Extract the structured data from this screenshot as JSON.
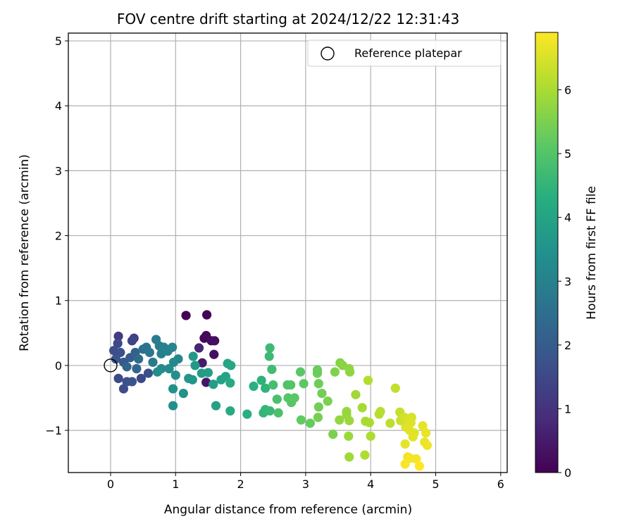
{
  "chart_data": {
    "type": "scatter",
    "title": "FOV centre drift starting at 2024/12/22 12:31:43",
    "xlabel": "Angular distance from reference (arcmin)",
    "ylabel": "Rotation from reference (arcmin)",
    "xlim": [
      -0.65,
      6.1
    ],
    "ylim": [
      -1.65,
      5.12
    ],
    "xticks": [
      "0",
      "1",
      "2",
      "3",
      "4",
      "5",
      "6"
    ],
    "yticks": [
      "−1",
      "0",
      "1",
      "2",
      "3",
      "4",
      "5"
    ],
    "grid": true,
    "legend": {
      "placement": "top-right",
      "entries": [
        "Reference platepar"
      ]
    },
    "reference_point": {
      "x": 0,
      "y": 0,
      "name": "Reference platepar"
    },
    "colorbar": {
      "label": "Hours from first FF file",
      "range": [
        0,
        6.9
      ],
      "ticks": [
        "0",
        "1",
        "2",
        "3",
        "4",
        "5",
        "6"
      ],
      "colormap": "viridis"
    },
    "points": [
      {
        "x": 1.16,
        "y": 0.77,
        "t": 0.0
      },
      {
        "x": 1.48,
        "y": 0.78,
        "t": 0.05
      },
      {
        "x": 1.44,
        "y": 0.42,
        "t": 0.1
      },
      {
        "x": 1.47,
        "y": 0.46,
        "t": 0.15
      },
      {
        "x": 1.55,
        "y": 0.38,
        "t": 0.2
      },
      {
        "x": 1.6,
        "y": 0.38,
        "t": 0.25
      },
      {
        "x": 1.59,
        "y": 0.17,
        "t": 0.3
      },
      {
        "x": 1.47,
        "y": -0.26,
        "t": 0.4
      },
      {
        "x": 1.41,
        "y": 0.04,
        "t": 0.5
      },
      {
        "x": 1.36,
        "y": 0.27,
        "t": 0.7
      },
      {
        "x": 0.12,
        "y": 0.45,
        "t": 1.2
      },
      {
        "x": 0.36,
        "y": 0.42,
        "t": 1.3
      },
      {
        "x": 0.33,
        "y": 0.38,
        "t": 1.4
      },
      {
        "x": 0.11,
        "y": 0.34,
        "t": 1.5
      },
      {
        "x": 0.05,
        "y": 0.23,
        "t": 1.6
      },
      {
        "x": 0.15,
        "y": 0.2,
        "t": 1.7
      },
      {
        "x": 0.08,
        "y": 0.1,
        "t": 1.8
      },
      {
        "x": 0.2,
        "y": 0.05,
        "t": 1.9
      },
      {
        "x": 0.12,
        "y": -0.2,
        "t": 1.55
      },
      {
        "x": 0.2,
        "y": -0.36,
        "t": 1.6
      },
      {
        "x": 0.25,
        "y": -0.25,
        "t": 1.7
      },
      {
        "x": 0.33,
        "y": -0.25,
        "t": 1.8
      },
      {
        "x": 0.47,
        "y": -0.2,
        "t": 1.5
      },
      {
        "x": 0.58,
        "y": -0.12,
        "t": 1.65
      },
      {
        "x": 0.3,
        "y": 0.12,
        "t": 2.0
      },
      {
        "x": 0.38,
        "y": 0.2,
        "t": 2.1
      },
      {
        "x": 0.25,
        "y": -0.02,
        "t": 2.2
      },
      {
        "x": 0.4,
        "y": -0.05,
        "t": 2.3
      },
      {
        "x": 0.43,
        "y": 0.1,
        "t": 2.4
      },
      {
        "x": 0.5,
        "y": 0.25,
        "t": 2.5
      },
      {
        "x": 0.55,
        "y": 0.28,
        "t": 2.6
      },
      {
        "x": 0.6,
        "y": 0.2,
        "t": 2.7
      },
      {
        "x": 0.65,
        "y": 0.05,
        "t": 2.8
      },
      {
        "x": 0.7,
        "y": 0.4,
        "t": 2.85
      },
      {
        "x": 0.75,
        "y": 0.3,
        "t": 2.9
      },
      {
        "x": 0.78,
        "y": 0.18,
        "t": 2.95
      },
      {
        "x": 0.82,
        "y": 0.28,
        "t": 3.0
      },
      {
        "x": 0.88,
        "y": 0.22,
        "t": 3.05
      },
      {
        "x": 0.95,
        "y": 0.28,
        "t": 3.1
      },
      {
        "x": 1.04,
        "y": 0.1,
        "t": 3.15
      },
      {
        "x": 0.97,
        "y": 0.05,
        "t": 3.2
      },
      {
        "x": 0.78,
        "y": -0.05,
        "t": 3.25
      },
      {
        "x": 0.72,
        "y": -0.1,
        "t": 3.3
      },
      {
        "x": 0.9,
        "y": -0.05,
        "t": 3.35
      },
      {
        "x": 1.0,
        "y": -0.15,
        "t": 3.4
      },
      {
        "x": 0.96,
        "y": -0.36,
        "t": 3.45
      },
      {
        "x": 0.96,
        "y": -0.62,
        "t": 3.4
      },
      {
        "x": 1.12,
        "y": -0.43,
        "t": 3.5
      },
      {
        "x": 1.2,
        "y": -0.2,
        "t": 3.55
      },
      {
        "x": 1.26,
        "y": -0.22,
        "t": 3.6
      },
      {
        "x": 1.27,
        "y": 0.14,
        "t": 3.65
      },
      {
        "x": 1.3,
        "y": 0.0,
        "t": 3.7
      },
      {
        "x": 1.4,
        "y": -0.12,
        "t": 3.75
      },
      {
        "x": 1.5,
        "y": -0.11,
        "t": 3.8
      },
      {
        "x": 1.58,
        "y": -0.29,
        "t": 3.85
      },
      {
        "x": 1.62,
        "y": -0.62,
        "t": 3.9
      },
      {
        "x": 1.7,
        "y": -0.22,
        "t": 3.95
      },
      {
        "x": 1.77,
        "y": -0.17,
        "t": 4.0
      },
      {
        "x": 1.8,
        "y": 0.03,
        "t": 4.05
      },
      {
        "x": 1.85,
        "y": 0.0,
        "t": 4.1
      },
      {
        "x": 1.84,
        "y": -0.27,
        "t": 4.15
      },
      {
        "x": 1.84,
        "y": -0.7,
        "t": 4.2
      },
      {
        "x": 2.1,
        "y": -0.75,
        "t": 4.3
      },
      {
        "x": 2.2,
        "y": -0.32,
        "t": 4.35
      },
      {
        "x": 2.32,
        "y": -0.23,
        "t": 4.4
      },
      {
        "x": 2.38,
        "y": -0.35,
        "t": 4.45
      },
      {
        "x": 2.35,
        "y": -0.73,
        "t": 4.5
      },
      {
        "x": 2.38,
        "y": -0.68,
        "t": 4.55
      },
      {
        "x": 2.45,
        "y": -0.7,
        "t": 4.6
      },
      {
        "x": 2.44,
        "y": 0.14,
        "t": 4.65
      },
      {
        "x": 2.45,
        "y": 0.27,
        "t": 4.7
      },
      {
        "x": 2.48,
        "y": -0.06,
        "t": 4.75
      },
      {
        "x": 2.5,
        "y": -0.3,
        "t": 4.8
      },
      {
        "x": 2.56,
        "y": -0.52,
        "t": 4.85
      },
      {
        "x": 2.58,
        "y": -0.73,
        "t": 4.9
      },
      {
        "x": 2.72,
        "y": -0.3,
        "t": 4.95
      },
      {
        "x": 2.77,
        "y": -0.3,
        "t": 5.0
      },
      {
        "x": 2.73,
        "y": -0.5,
        "t": 5.05
      },
      {
        "x": 2.78,
        "y": -0.57,
        "t": 5.05
      },
      {
        "x": 2.83,
        "y": -0.5,
        "t": 5.1
      },
      {
        "x": 2.92,
        "y": -0.1,
        "t": 5.1
      },
      {
        "x": 2.97,
        "y": -0.28,
        "t": 5.15
      },
      {
        "x": 2.93,
        "y": -0.84,
        "t": 5.2
      },
      {
        "x": 3.07,
        "y": -0.89,
        "t": 5.25
      },
      {
        "x": 3.18,
        "y": -0.07,
        "t": 5.3
      },
      {
        "x": 3.18,
        "y": -0.12,
        "t": 5.3
      },
      {
        "x": 3.2,
        "y": -0.28,
        "t": 5.35
      },
      {
        "x": 3.25,
        "y": -0.43,
        "t": 5.4
      },
      {
        "x": 3.2,
        "y": -0.64,
        "t": 5.4
      },
      {
        "x": 3.19,
        "y": -0.8,
        "t": 5.45
      },
      {
        "x": 3.34,
        "y": -0.55,
        "t": 5.5
      },
      {
        "x": 3.42,
        "y": -1.06,
        "t": 5.5
      },
      {
        "x": 3.45,
        "y": -0.1,
        "t": 5.55
      },
      {
        "x": 3.53,
        "y": 0.04,
        "t": 5.6
      },
      {
        "x": 3.57,
        "y": 0.0,
        "t": 5.65
      },
      {
        "x": 3.67,
        "y": -0.05,
        "t": 5.7
      },
      {
        "x": 3.68,
        "y": -0.1,
        "t": 5.7
      },
      {
        "x": 3.52,
        "y": -0.84,
        "t": 5.75
      },
      {
        "x": 3.63,
        "y": -0.71,
        "t": 5.8
      },
      {
        "x": 3.63,
        "y": -0.76,
        "t": 5.8
      },
      {
        "x": 3.67,
        "y": -0.85,
        "t": 5.85
      },
      {
        "x": 3.66,
        "y": -1.09,
        "t": 5.85
      },
      {
        "x": 3.67,
        "y": -1.41,
        "t": 5.9
      },
      {
        "x": 3.77,
        "y": -0.45,
        "t": 5.9
      },
      {
        "x": 3.87,
        "y": -0.65,
        "t": 5.95
      },
      {
        "x": 3.92,
        "y": -0.86,
        "t": 6.0
      },
      {
        "x": 3.98,
        "y": -0.88,
        "t": 6.0
      },
      {
        "x": 3.91,
        "y": -1.38,
        "t": 6.05
      },
      {
        "x": 4.0,
        "y": -1.09,
        "t": 6.05
      },
      {
        "x": 3.96,
        "y": -0.23,
        "t": 6.1
      },
      {
        "x": 4.13,
        "y": -0.75,
        "t": 6.15
      },
      {
        "x": 4.15,
        "y": -0.71,
        "t": 6.15
      },
      {
        "x": 4.3,
        "y": -0.89,
        "t": 6.2
      },
      {
        "x": 4.38,
        "y": -0.35,
        "t": 6.25
      },
      {
        "x": 4.45,
        "y": -0.72,
        "t": 6.3
      },
      {
        "x": 4.46,
        "y": -0.85,
        "t": 6.35
      },
      {
        "x": 4.55,
        "y": -0.9,
        "t": 6.4
      },
      {
        "x": 4.52,
        "y": -0.8,
        "t": 6.45
      },
      {
        "x": 4.58,
        "y": -0.84,
        "t": 6.5
      },
      {
        "x": 4.63,
        "y": -0.8,
        "t": 6.5
      },
      {
        "x": 4.62,
        "y": -0.88,
        "t": 6.55
      },
      {
        "x": 4.54,
        "y": -0.95,
        "t": 6.55
      },
      {
        "x": 4.6,
        "y": -1.0,
        "t": 6.6
      },
      {
        "x": 4.67,
        "y": -1.04,
        "t": 6.6
      },
      {
        "x": 4.65,
        "y": -1.1,
        "t": 6.6
      },
      {
        "x": 4.53,
        "y": -1.21,
        "t": 6.65
      },
      {
        "x": 4.8,
        "y": -0.93,
        "t": 6.65
      },
      {
        "x": 4.85,
        "y": -1.04,
        "t": 6.7
      },
      {
        "x": 4.83,
        "y": -1.18,
        "t": 6.7
      },
      {
        "x": 4.87,
        "y": -1.23,
        "t": 6.75
      },
      {
        "x": 4.57,
        "y": -1.41,
        "t": 6.75
      },
      {
        "x": 4.61,
        "y": -1.43,
        "t": 6.8
      },
      {
        "x": 4.7,
        "y": -1.44,
        "t": 6.8
      },
      {
        "x": 4.53,
        "y": -1.52,
        "t": 6.85
      },
      {
        "x": 4.75,
        "y": -1.55,
        "t": 6.9
      }
    ]
  }
}
